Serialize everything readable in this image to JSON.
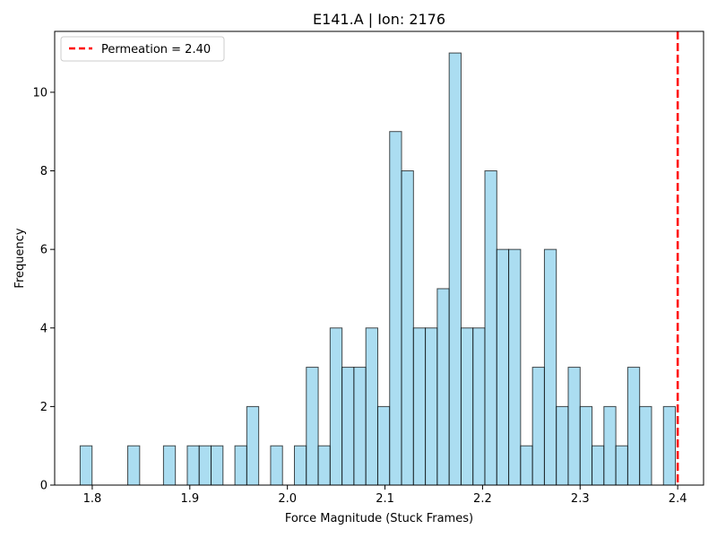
{
  "chart_data": {
    "type": "bar",
    "title": "E141.A | Ion: 2176",
    "xlabel": "Force Magnitude (Stuck Frames)",
    "ylabel": "Frequency",
    "xlim": [
      1.7615,
      2.4265
    ],
    "ylim": [
      0,
      11.55
    ],
    "bin_width": 0.0122,
    "bin_start": 1.7876,
    "values": [
      1,
      0,
      0,
      0,
      1,
      0,
      0,
      1,
      0,
      1,
      1,
      1,
      0,
      1,
      2,
      0,
      1,
      0,
      1,
      3,
      1,
      4,
      3,
      3,
      4,
      2,
      9,
      8,
      4,
      4,
      5,
      11,
      4,
      4,
      8,
      6,
      6,
      1,
      3,
      6,
      2,
      3,
      2,
      1,
      2,
      1,
      3,
      2,
      0,
      2
    ],
    "x_ticks": [
      "1.8",
      "1.9",
      "2.0",
      "2.1",
      "2.2",
      "2.3",
      "2.4"
    ],
    "x_tick_values": [
      1.8,
      1.9,
      2.0,
      2.1,
      2.2,
      2.3,
      2.4
    ],
    "y_ticks": [
      "0",
      "2",
      "4",
      "6",
      "8",
      "10"
    ],
    "y_tick_values": [
      0,
      2,
      4,
      6,
      8,
      10
    ],
    "reference_line": {
      "x": 2.4,
      "label": "Permeation = 2.40",
      "color": "#ff0000",
      "style": "dashed"
    },
    "bar_color": "#87ceeb",
    "bar_edge_color": "#000000",
    "legend_position": "top-left",
    "grid": false
  }
}
